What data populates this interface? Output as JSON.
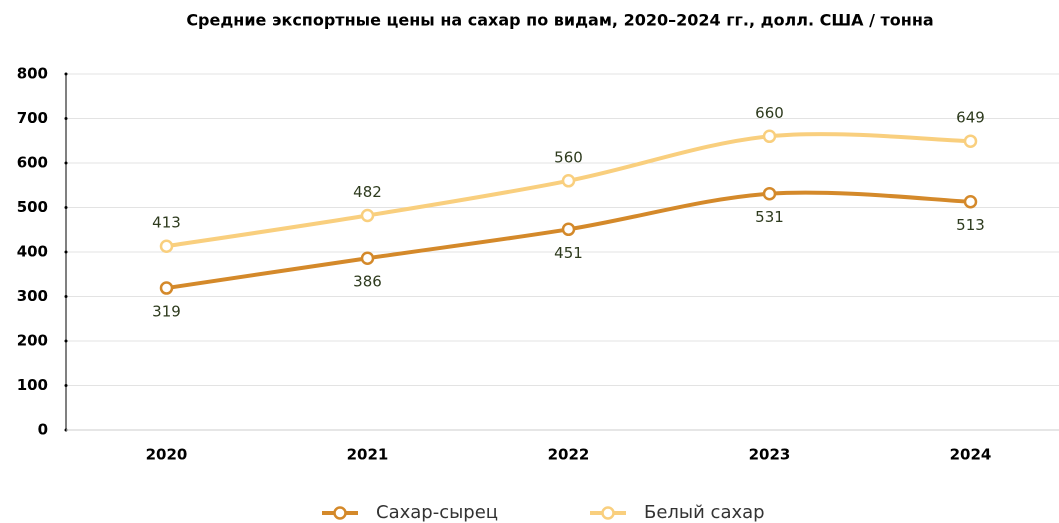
{
  "chart_data": {
    "type": "line",
    "title": "Средние экспортные цены на сахар по видам, 2020–2024 гг., долл. США / тонна",
    "categories": [
      "2020",
      "2021",
      "2022",
      "2023",
      "2024"
    ],
    "series": [
      {
        "name": "Сахар-сырец",
        "color": "#d4892a",
        "values": [
          319,
          386,
          451,
          531,
          513
        ]
      },
      {
        "name": "Белый сахар",
        "color": "#f9cf7e",
        "values": [
          413,
          482,
          560,
          660,
          649
        ]
      }
    ],
    "ylim": [
      0,
      800
    ],
    "yticks": [
      0,
      100,
      200,
      300,
      400,
      500,
      600,
      700,
      800
    ],
    "grid": true,
    "legend": "bottom"
  }
}
